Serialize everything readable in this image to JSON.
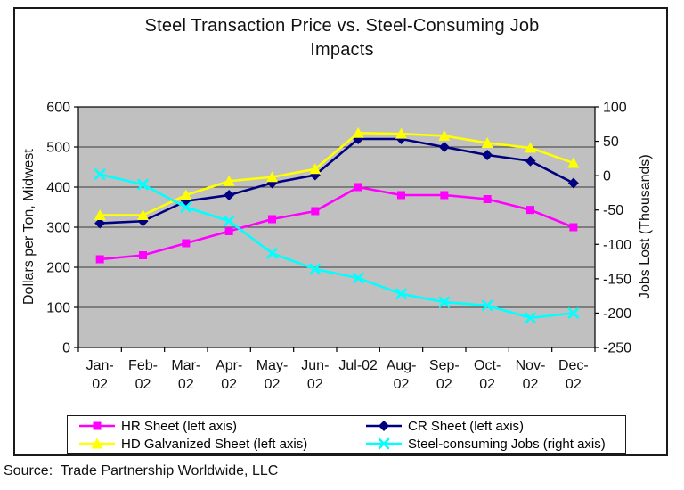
{
  "header": {
    "title_line1": "Steel Transaction Price vs. Steel-Consuming Job",
    "title_line2": "Impacts"
  },
  "source": "Source:  Trade Partnership Worldwide, LLC",
  "chart_data": {
    "type": "line",
    "title": "Steel Transaction Price vs. Steel-Consuming Job Impacts",
    "categories": [
      "Jan-02",
      "Feb-02",
      "Mar-02",
      "Apr-02",
      "May-02",
      "Jun-02",
      "Jul-02",
      "Aug-02",
      "Sep-02",
      "Oct-02",
      "Nov-02",
      "Dec-02"
    ],
    "category_tick_lines": [
      [
        "Jan-",
        "02"
      ],
      [
        "Feb-",
        "02"
      ],
      [
        "Mar-",
        "02"
      ],
      [
        "Apr-",
        "02"
      ],
      [
        "May-",
        "02"
      ],
      [
        "Jun-",
        "02"
      ],
      [
        "Jul-02"
      ],
      [
        "Aug-",
        "02"
      ],
      [
        "Sep-",
        "02"
      ],
      [
        "Oct-",
        "02"
      ],
      [
        "Nov-",
        "02"
      ],
      [
        "Dec-",
        "02"
      ]
    ],
    "left_axis": {
      "label": "Dollars per Ton, Midwest",
      "min": 0,
      "max": 600,
      "tick_step": 100,
      "ticks": [
        600,
        500,
        400,
        300,
        200,
        100,
        0
      ]
    },
    "right_axis": {
      "label": "Jobs Lost (Thousands)",
      "min": -250,
      "max": 100,
      "tick_step": 50,
      "ticks": [
        100,
        50,
        0,
        -50,
        -100,
        -150,
        -200,
        -250
      ]
    },
    "grid": true,
    "plot_bg_color": "#c0c0c0",
    "gridline_color": "#3a3a3a",
    "legend_position": "bottom",
    "series": [
      {
        "name": "HR Sheet (left axis)",
        "axis": "left",
        "color": "#ff00ff",
        "marker": "square",
        "values": [
          220,
          230,
          260,
          290,
          320,
          340,
          400,
          380,
          380,
          370,
          343,
          300
        ]
      },
      {
        "name": "CR Sheet (left axis)",
        "axis": "left",
        "color": "#000080",
        "marker": "diamond",
        "values": [
          310,
          315,
          365,
          380,
          410,
          430,
          520,
          520,
          500,
          480,
          465,
          410
        ]
      },
      {
        "name": "HD Galvanized Sheet (left axis)",
        "axis": "left",
        "color": "#ffff00",
        "marker": "triangle",
        "values": [
          330,
          330,
          380,
          415,
          425,
          445,
          535,
          533,
          528,
          510,
          498,
          460
        ]
      },
      {
        "name": "Steel-consuming Jobs (right axis)",
        "axis": "right",
        "color": "#00ffff",
        "marker": "x",
        "values": [
          2,
          -13,
          -46,
          -66,
          -113,
          -136,
          -149,
          -172,
          -184,
          -189,
          -207,
          -200
        ]
      }
    ]
  }
}
